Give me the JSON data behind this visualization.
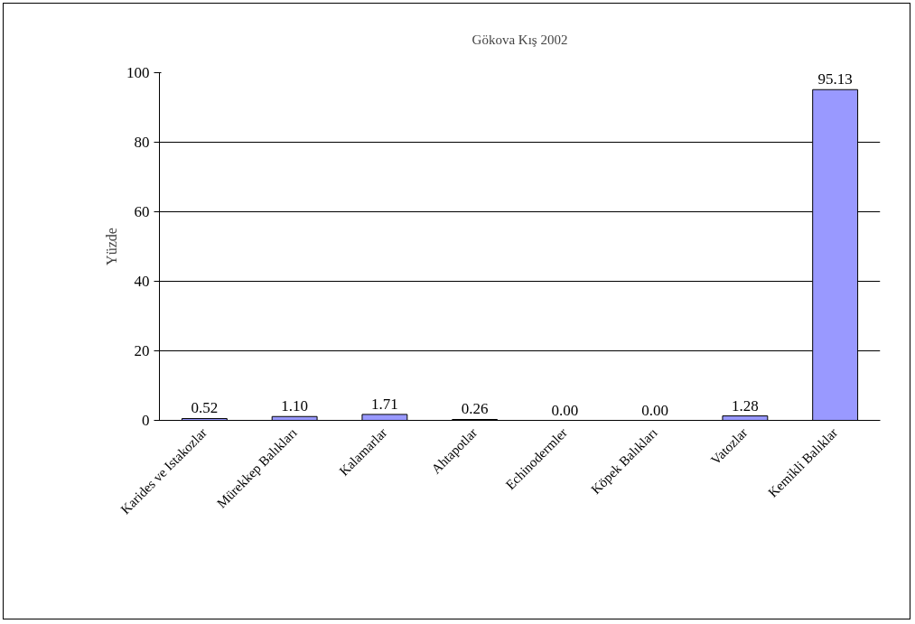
{
  "chart_data": {
    "type": "bar",
    "title": "Gökova Kış 2002",
    "ylabel": "Yüzde",
    "categories": [
      "Karides ve Istakozlar",
      "Mürekkep Balıkları",
      "Kalamarlar",
      "Ahtapotlar",
      "Echinodermler",
      "Köpek Balıkları",
      "Vatozlar",
      "Kemikli Balıklar"
    ],
    "values": [
      0.52,
      1.1,
      1.71,
      0.26,
      0.0,
      0.0,
      1.28,
      95.13
    ],
    "value_labels": [
      "0.52",
      "1.10",
      "1.71",
      "0.26",
      "0.00",
      "0.00",
      "1.28",
      "95.13"
    ],
    "color": "#9999ff",
    "ylim": [
      0,
      100
    ],
    "yticks": [
      0,
      20,
      40,
      60,
      80,
      100
    ],
    "grid": "y"
  }
}
